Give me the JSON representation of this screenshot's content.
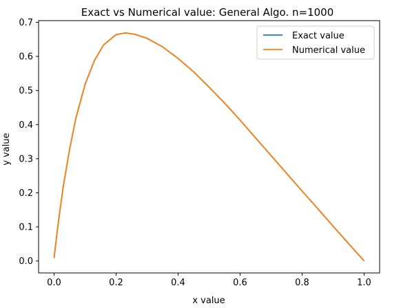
{
  "chart_data": {
    "type": "line",
    "title": "Exact vs Numerical value: General Algo. n=1000",
    "xlabel": "x value",
    "ylabel": "y value",
    "xlim": [
      -0.05,
      1.05
    ],
    "ylim": [
      -0.035,
      0.705
    ],
    "xticks": [
      0.0,
      0.2,
      0.4,
      0.6,
      0.8,
      1.0
    ],
    "xtick_labels": [
      "0.0",
      "0.2",
      "0.4",
      "0.6",
      "0.8",
      "1.0"
    ],
    "yticks": [
      0.0,
      0.1,
      0.2,
      0.3,
      0.4,
      0.5,
      0.6,
      0.7
    ],
    "ytick_labels": [
      "0.0",
      "0.1",
      "0.2",
      "0.3",
      "0.4",
      "0.5",
      "0.6",
      "0.7"
    ],
    "grid": false,
    "legend_position": "top-right",
    "series": [
      {
        "name": "Exact value",
        "color": "#1f77b4",
        "x": [
          0.0,
          0.01,
          0.02,
          0.03,
          0.05,
          0.07,
          0.1,
          0.13,
          0.16,
          0.2,
          0.23,
          0.26,
          0.3,
          0.35,
          0.4,
          0.45,
          0.5,
          0.55,
          0.6,
          0.65,
          0.7,
          0.75,
          0.8,
          0.85,
          0.9,
          0.95,
          1.0
        ],
        "y": [
          0.009,
          0.086,
          0.156,
          0.221,
          0.327,
          0.418,
          0.518,
          0.588,
          0.634,
          0.664,
          0.669,
          0.665,
          0.653,
          0.628,
          0.594,
          0.555,
          0.51,
          0.463,
          0.413,
          0.361,
          0.309,
          0.257,
          0.205,
          0.154,
          0.102,
          0.051,
          0.0
        ]
      },
      {
        "name": "Numerical value",
        "color": "#ff7f0e",
        "x": [
          0.0,
          0.01,
          0.02,
          0.03,
          0.05,
          0.07,
          0.1,
          0.13,
          0.16,
          0.2,
          0.23,
          0.26,
          0.3,
          0.35,
          0.4,
          0.45,
          0.5,
          0.55,
          0.6,
          0.65,
          0.7,
          0.75,
          0.8,
          0.85,
          0.9,
          0.95,
          1.0
        ],
        "y": [
          0.009,
          0.086,
          0.156,
          0.221,
          0.327,
          0.418,
          0.518,
          0.588,
          0.634,
          0.664,
          0.669,
          0.665,
          0.653,
          0.628,
          0.594,
          0.555,
          0.51,
          0.463,
          0.413,
          0.361,
          0.309,
          0.257,
          0.205,
          0.154,
          0.102,
          0.051,
          0.0
        ]
      }
    ]
  }
}
